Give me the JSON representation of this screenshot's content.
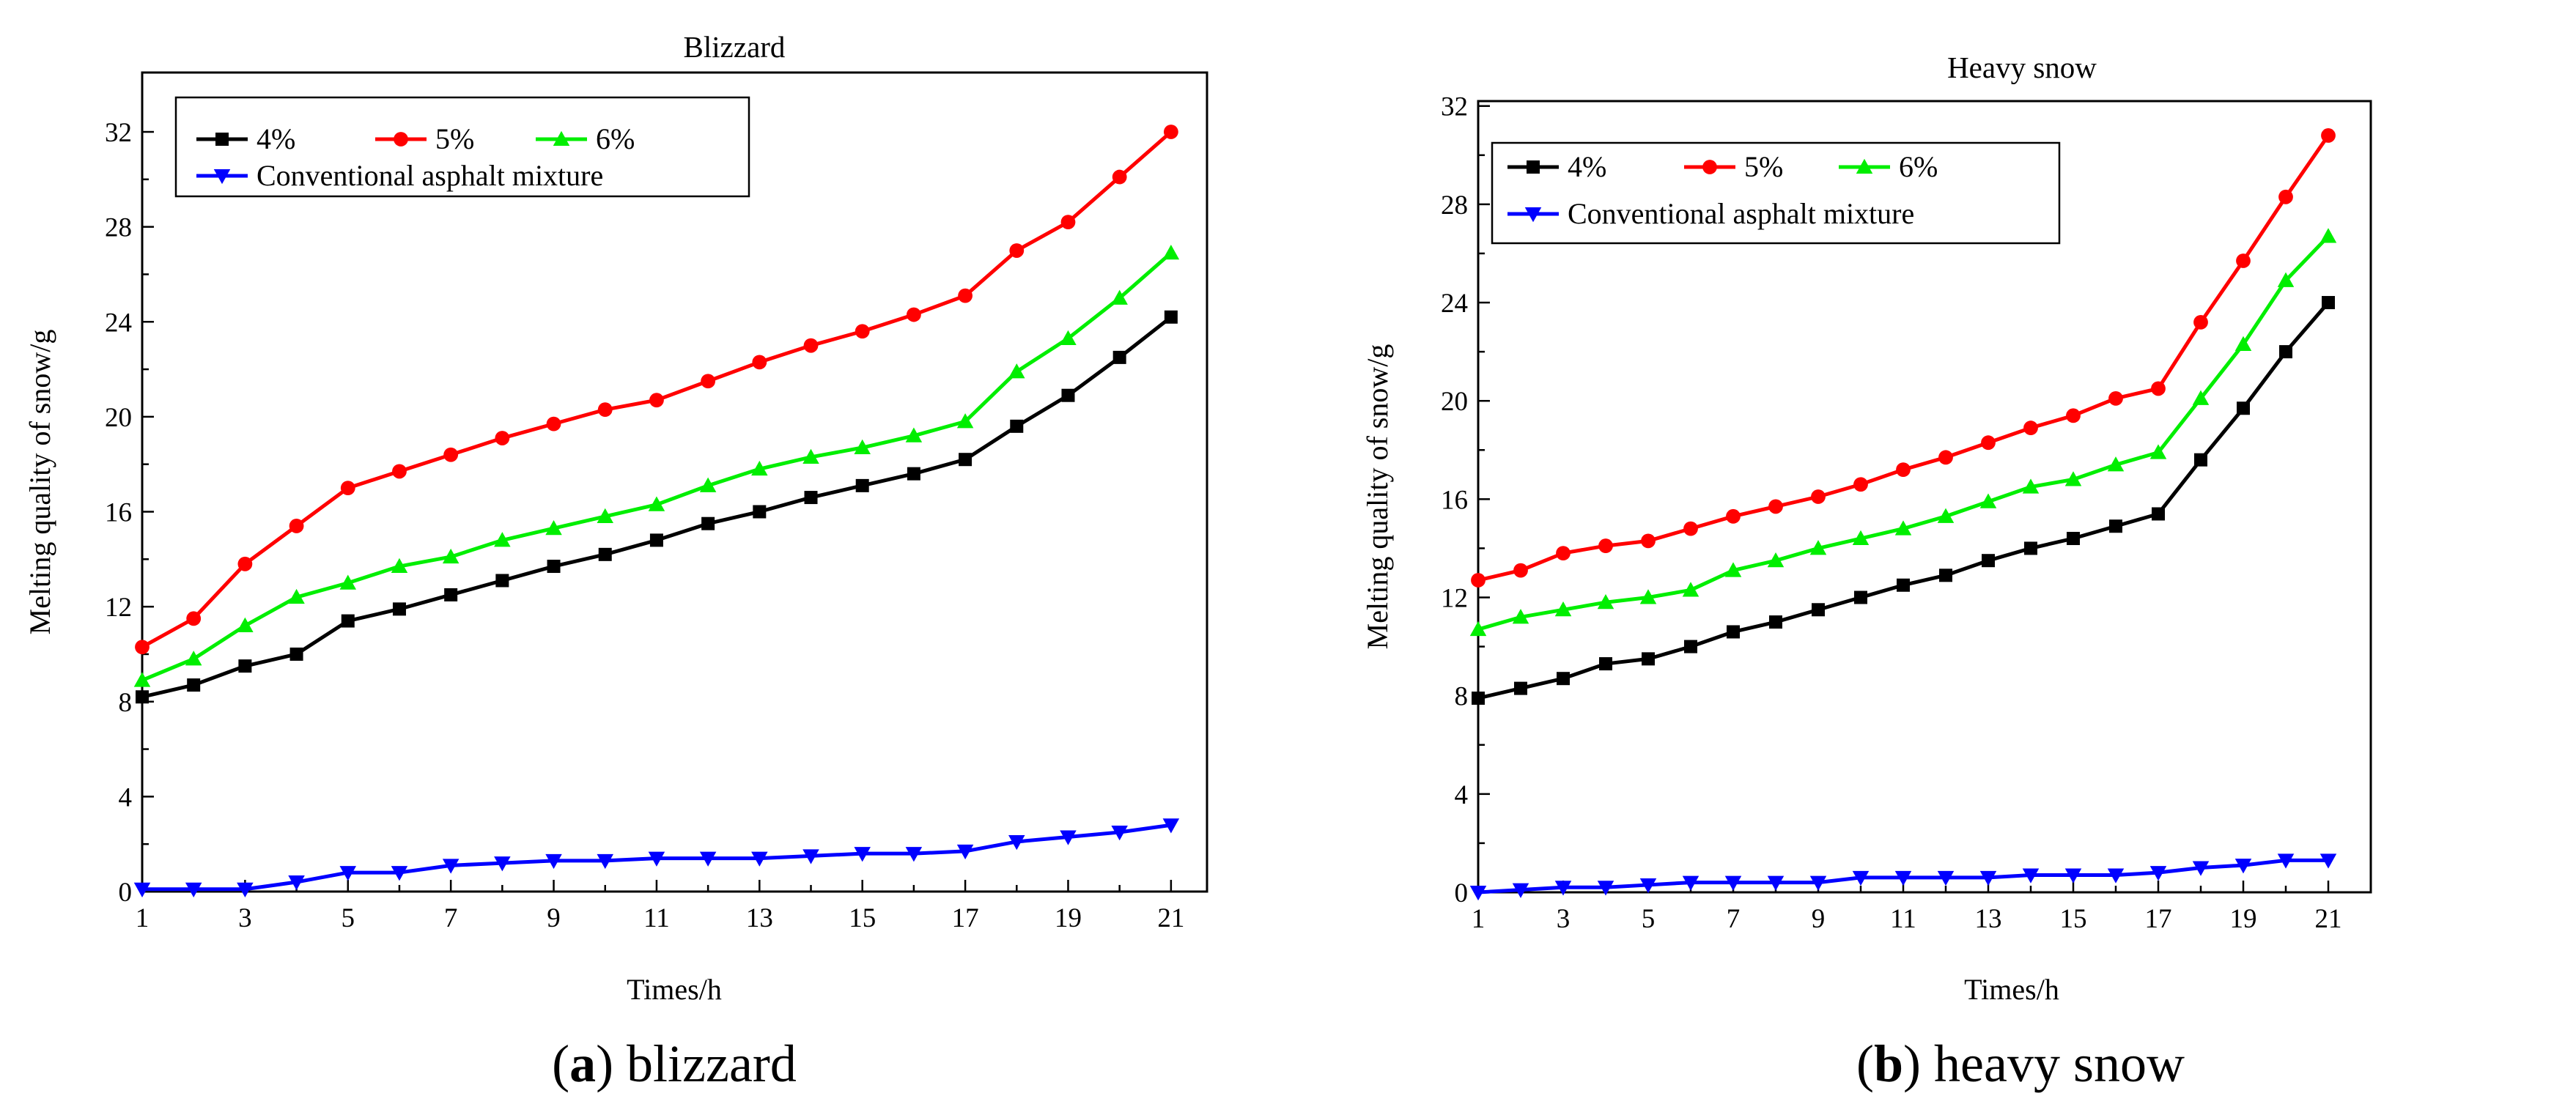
{
  "chart_data": [
    {
      "type": "line",
      "title": "Blizzard",
      "xlabel": "Times/h",
      "ylabel": "Melting quality of snow/g",
      "caption": {
        "letter": "a",
        "text": "blizzard"
      },
      "xlim": [
        1,
        21.7
      ],
      "ylim": [
        0,
        34.5
      ],
      "xticks": [
        1,
        3,
        5,
        7,
        9,
        11,
        13,
        15,
        17,
        19,
        21
      ],
      "yticks": [
        0,
        4,
        8,
        12,
        16,
        20,
        24,
        28,
        32
      ],
      "x": [
        1,
        2,
        3,
        4,
        5,
        6,
        7,
        8,
        9,
        10,
        11,
        12,
        13,
        14,
        15,
        16,
        17,
        18,
        19,
        20,
        21
      ],
      "series": [
        {
          "name": "4%",
          "color": "#000000",
          "marker": "square",
          "values": [
            8.2,
            8.7,
            9.5,
            10.0,
            11.4,
            11.9,
            12.5,
            13.1,
            13.7,
            14.2,
            14.8,
            15.5,
            16.0,
            16.6,
            17.1,
            17.6,
            18.2,
            19.6,
            20.9,
            22.5,
            24.2
          ]
        },
        {
          "name": "5%",
          "color": "#ff0000",
          "marker": "circle",
          "values": [
            10.3,
            11.5,
            13.8,
            15.4,
            17.0,
            17.7,
            18.4,
            19.1,
            19.7,
            20.3,
            20.7,
            21.5,
            22.3,
            23.0,
            23.6,
            24.3,
            25.1,
            27.0,
            28.2,
            30.1,
            32.0
          ]
        },
        {
          "name": "6%",
          "color": "#00ee00",
          "marker": "triangle-up",
          "values": [
            8.9,
            9.8,
            11.2,
            12.4,
            13.0,
            13.7,
            14.1,
            14.8,
            15.3,
            15.8,
            16.3,
            17.1,
            17.8,
            18.3,
            18.7,
            19.2,
            19.8,
            21.9,
            23.3,
            25.0,
            26.9
          ]
        },
        {
          "name": "Conventional asphalt mixture",
          "color": "#0000ff",
          "marker": "triangle-down",
          "values": [
            0.1,
            0.1,
            0.1,
            0.4,
            0.8,
            0.8,
            1.1,
            1.2,
            1.3,
            1.3,
            1.4,
            1.4,
            1.4,
            1.5,
            1.6,
            1.6,
            1.7,
            2.1,
            2.3,
            2.5,
            2.8
          ]
        }
      ],
      "legend_location": "top-left"
    },
    {
      "type": "line",
      "title": "Heavy snow",
      "xlabel": "Times/h",
      "ylabel": "Melting quality of snow/g",
      "caption": {
        "letter": "b",
        "text": "heavy snow"
      },
      "xlim": [
        1,
        22.0
      ],
      "ylim": [
        0,
        32.2
      ],
      "xticks": [
        1,
        3,
        5,
        7,
        9,
        11,
        13,
        15,
        17,
        19,
        21
      ],
      "yticks": [
        0,
        4,
        8,
        12,
        16,
        20,
        24,
        28,
        32
      ],
      "x": [
        1,
        2,
        3,
        4,
        5,
        6,
        7,
        8,
        9,
        10,
        11,
        12,
        13,
        14,
        15,
        16,
        17,
        18,
        19,
        20,
        21
      ],
      "series": [
        {
          "name": "4%",
          "color": "#000000",
          "marker": "square",
          "values": [
            7.9,
            8.3,
            8.7,
            9.3,
            9.5,
            10.0,
            10.6,
            11.0,
            11.5,
            12.0,
            12.5,
            12.9,
            13.5,
            14.0,
            14.4,
            14.9,
            15.4,
            17.6,
            19.7,
            22.0,
            24.0
          ]
        },
        {
          "name": "5%",
          "color": "#ff0000",
          "marker": "circle",
          "values": [
            12.7,
            13.1,
            13.8,
            14.1,
            14.3,
            14.8,
            15.3,
            15.7,
            16.1,
            16.6,
            17.2,
            17.7,
            18.3,
            18.9,
            19.4,
            20.1,
            20.5,
            23.2,
            25.7,
            28.3,
            30.8
          ]
        },
        {
          "name": "6%",
          "color": "#00ee00",
          "marker": "triangle-up",
          "values": [
            10.7,
            11.2,
            11.5,
            11.8,
            12.0,
            12.3,
            13.1,
            13.5,
            14.0,
            14.4,
            14.8,
            15.3,
            15.9,
            16.5,
            16.8,
            17.4,
            17.9,
            20.1,
            22.3,
            24.9,
            26.7
          ]
        },
        {
          "name": "Conventional asphalt mixture",
          "color": "#0000ff",
          "marker": "triangle-down",
          "values": [
            0.0,
            0.1,
            0.2,
            0.2,
            0.3,
            0.4,
            0.4,
            0.4,
            0.4,
            0.6,
            0.6,
            0.6,
            0.6,
            0.7,
            0.7,
            0.7,
            0.8,
            1.0,
            1.1,
            1.3,
            1.3
          ]
        }
      ],
      "legend_location": "top-left"
    }
  ]
}
